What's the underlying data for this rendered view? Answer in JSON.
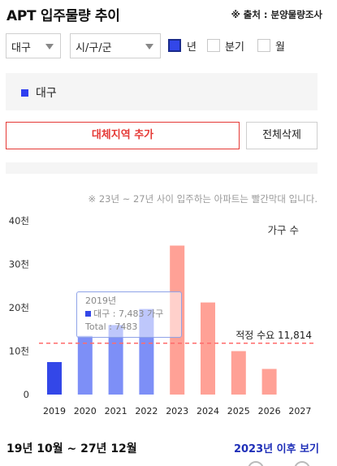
{
  "header": {
    "title": "APT 입주물량 추이",
    "source": "※ 출처 : 분양물량조사"
  },
  "filters": {
    "region_select": "대구",
    "district_select": "시/구/군",
    "periods": [
      {
        "label": "년",
        "checked": true
      },
      {
        "label": "분기",
        "checked": false
      },
      {
        "label": "월",
        "checked": false
      }
    ]
  },
  "region_list": {
    "items": [
      {
        "label": "대구",
        "color": "#2f3ff0"
      }
    ]
  },
  "buttons": {
    "add_region": "대체지역 추가",
    "delete_all": "전체삭제"
  },
  "chart_note": "※ 23년 ~ 27년 사이 입주하는 아파트는 빨간막대 입니다.",
  "chart_data": {
    "type": "bar",
    "categories": [
      "2019",
      "2020",
      "2021",
      "2022",
      "2023",
      "2024",
      "2025",
      "2026",
      "2027"
    ],
    "series": [
      {
        "name": "대구",
        "values": [
          7483,
          13500,
          16000,
          19700,
          34300,
          21200,
          10000,
          5900,
          0
        ]
      }
    ],
    "ylabel": "가구 수",
    "ylim": [
      0,
      40000
    ],
    "yticks": [
      0,
      10000,
      20000,
      30000,
      40000
    ],
    "ytick_labels": [
      "0",
      "10천",
      "20천",
      "30천",
      "40천"
    ],
    "bar_colors": {
      "past": "#7d8ff7",
      "first_past": "#3347e8",
      "future": "#ffa196"
    },
    "future_start": "2023",
    "reference_line": {
      "label": "적정 수요",
      "value": 11814,
      "value_label": "11,814",
      "color": "#ff6b6b"
    },
    "grid": false,
    "tooltip": {
      "year": "2019년",
      "series": "대구",
      "value_label": "7,483",
      "unit": "가구",
      "total_label": "Total",
      "total": "7483"
    }
  },
  "footer": {
    "period": "19년 10월 ~ 27년 12월",
    "link": "2023년 이후 보기"
  }
}
